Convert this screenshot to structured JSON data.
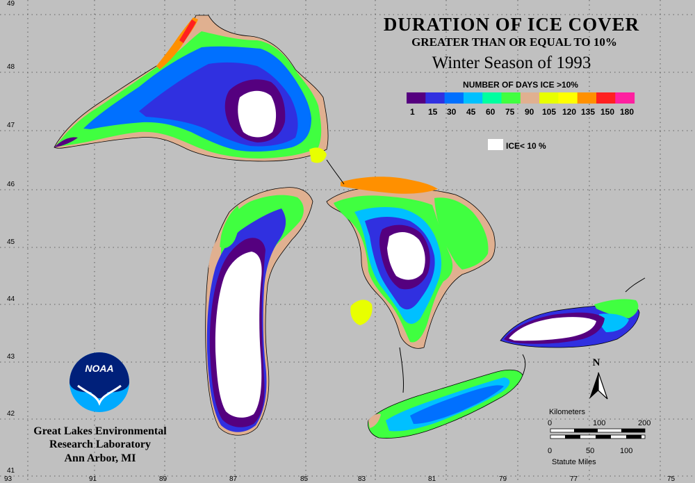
{
  "title": {
    "line1": "DURATION OF ICE COVER",
    "line2": "GREATER THAN OR EQUAL TO 10%",
    "line3": "Winter Season of 1993"
  },
  "legend": {
    "heading": "NUMBER OF DAYS ICE >10%",
    "swatches": [
      "#55007f",
      "#3030e0",
      "#0070ff",
      "#00c0ff",
      "#00ffa0",
      "#40ff40",
      "#e0b090",
      "#e8ff00",
      "#ffff00",
      "#ff9000",
      "#ff2020",
      "#ff20a0"
    ],
    "ticks": [
      "1",
      "15",
      "30",
      "45",
      "60",
      "75",
      "90",
      "105",
      "120",
      "135",
      "150",
      "180"
    ],
    "ice_label": "ICE< 10 %"
  },
  "axes": {
    "lat_labels": [
      "49",
      "48",
      "47",
      "46",
      "45",
      "44",
      "43",
      "42",
      "41"
    ],
    "lon_labels": [
      "93",
      "91",
      "89",
      "87",
      "85",
      "83",
      "81",
      "79",
      "77",
      "75"
    ]
  },
  "colors": {
    "background": "#c0c0c0",
    "ice_free": "#ffffff",
    "land_outline": "#000000"
  },
  "scale_bar": {
    "km_title": "Kilometers",
    "km_ticks": [
      "0",
      "100",
      "200"
    ],
    "mi_ticks": [
      "0",
      "50",
      "100"
    ],
    "mi_title": "Statute Miles"
  },
  "north_arrow": {
    "label": "N"
  },
  "logo": {
    "text": "NOAA",
    "icon": "noaa-logo-icon"
  },
  "institution": {
    "line1": "Great Lakes Environmental",
    "line2": "Research Laboratory",
    "line3": "Ann Arbor, MI"
  }
}
